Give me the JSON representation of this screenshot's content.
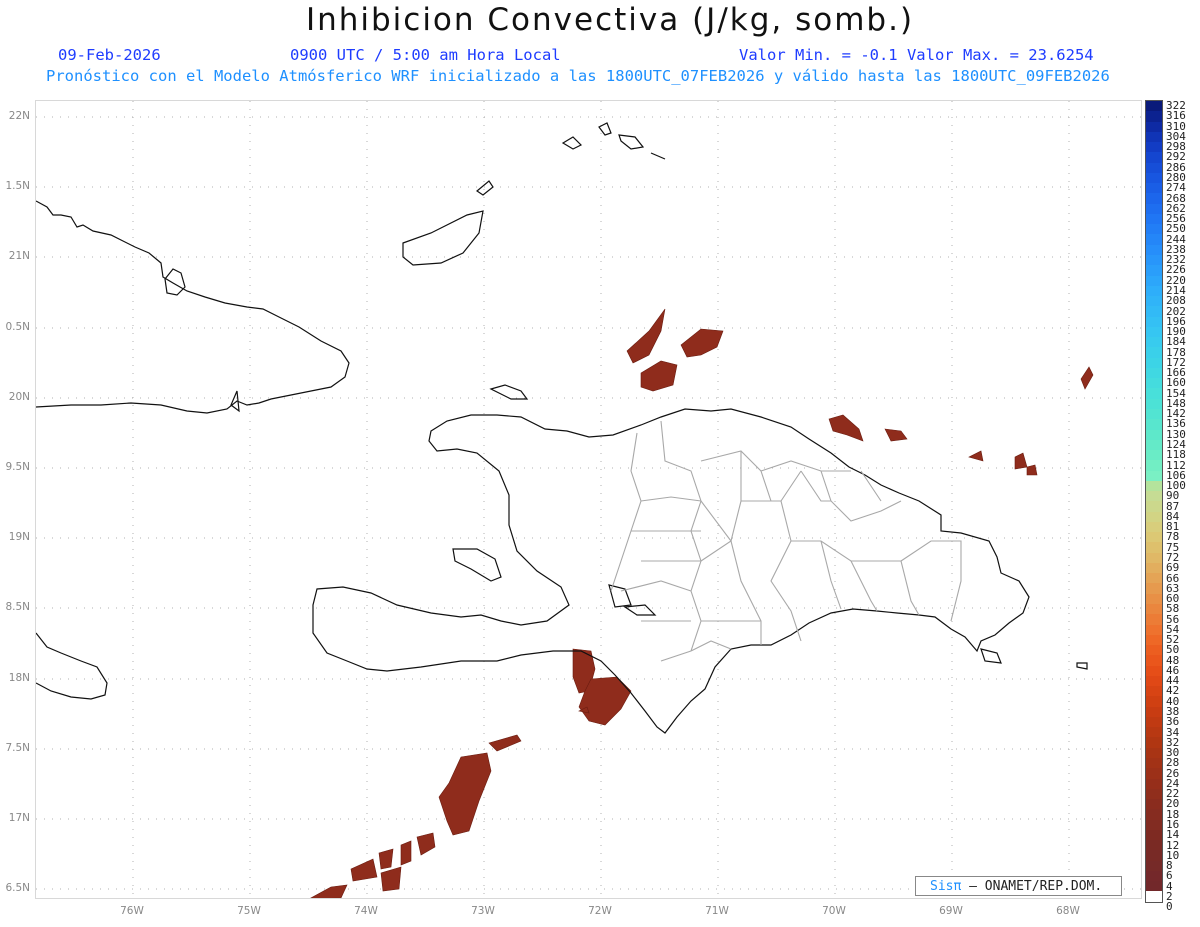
{
  "header": {
    "title": "Inhibicion Convectiva (J/kg, somb.)",
    "date": "09-Feb-2026",
    "time": "0900 UTC / 5:00 am Hora Local",
    "minmax": "Valor Min. = -0.1  Valor Max. = 23.6254",
    "forecast_line": "Pronóstico con el Modelo Atmósferico WRF inicializado a las 1800UTC_07FEB2026 y válido hasta las  1800UTC_09FEB2026"
  },
  "axes": {
    "lat_labels": [
      "22N",
      "1.5N",
      "21N",
      "0.5N",
      "20N",
      "9.5N",
      "19N",
      "8.5N",
      "18N",
      "7.5N",
      "17N",
      "6.5N"
    ],
    "lon_labels": [
      "76W",
      "75W",
      "74W",
      "73W",
      "72W",
      "71W",
      "70W",
      "69W",
      "68W"
    ]
  },
  "colorbar": {
    "labels": [
      "322",
      "316",
      "310",
      "304",
      "298",
      "292",
      "286",
      "280",
      "274",
      "268",
      "262",
      "256",
      "250",
      "244",
      "238",
      "232",
      "226",
      "220",
      "214",
      "208",
      "202",
      "196",
      "190",
      "184",
      "178",
      "172",
      "166",
      "160",
      "154",
      "148",
      "142",
      "136",
      "130",
      "124",
      "118",
      "112",
      "106",
      "100",
      "90",
      "87",
      "84",
      "81",
      "78",
      "75",
      "72",
      "69",
      "66",
      "63",
      "60",
      "58",
      "56",
      "54",
      "52",
      "50",
      "48",
      "46",
      "44",
      "42",
      "40",
      "38",
      "36",
      "34",
      "32",
      "30",
      "28",
      "26",
      "24",
      "22",
      "20",
      "18",
      "16",
      "14",
      "12",
      "10",
      "8",
      "6",
      "4",
      "2",
      "0"
    ],
    "colors": [
      "#0a1a7a",
      "#0c2290",
      "#0e2aa4",
      "#1034b6",
      "#123cc4",
      "#1446d0",
      "#164ed8",
      "#1856e0",
      "#1a5ee6",
      "#1c66ec",
      "#1e6ef0",
      "#2076f4",
      "#227ef6",
      "#2486f8",
      "#268efa",
      "#2896fa",
      "#2a9efa",
      "#2ca6fa",
      "#2eaefa",
      "#30b4f8",
      "#32baf6",
      "#34c0f4",
      "#36c6f2",
      "#38cbee",
      "#3ad0ea",
      "#3cd4e6",
      "#40d8e2",
      "#44dcde",
      "#48e0da",
      "#4ce2d6",
      "#52e4d2",
      "#58e6ce",
      "#5ee8ca",
      "#64eac8",
      "#6aecc6",
      "#72eec4",
      "#7af0c4",
      "#b4e39c",
      "#c6dc94",
      "#ccd88c",
      "#d2d484",
      "#d8ce7c",
      "#dcc874",
      "#dec06c",
      "#e0b866",
      "#e2ae5e",
      "#e4a456",
      "#e69a4e",
      "#e89046",
      "#ea863e",
      "#ec7c36",
      "#ee722e",
      "#ee6826",
      "#ec5e20",
      "#ea561c",
      "#e64e18",
      "#e04816",
      "#d84414",
      "#d04012",
      "#c83c12",
      "#c03a12",
      "#b83812",
      "#b03612",
      "#a83414",
      "#a23216",
      "#9c3018",
      "#962e1a",
      "#902e1c",
      "#8a2c1e",
      "#862c20",
      "#822c22",
      "#7e2a22",
      "#7a2a24",
      "#782a26",
      "#762a28",
      "#74282a",
      "#72282a",
      "#ffffff"
    ]
  },
  "credit": {
    "brand": "Sisπ",
    "org": "– ONAMET/REP.DOM."
  },
  "colors": {
    "cape_fill": "#8f2c1c",
    "province_lines": "#a8a8a8",
    "coast": "#111111"
  }
}
